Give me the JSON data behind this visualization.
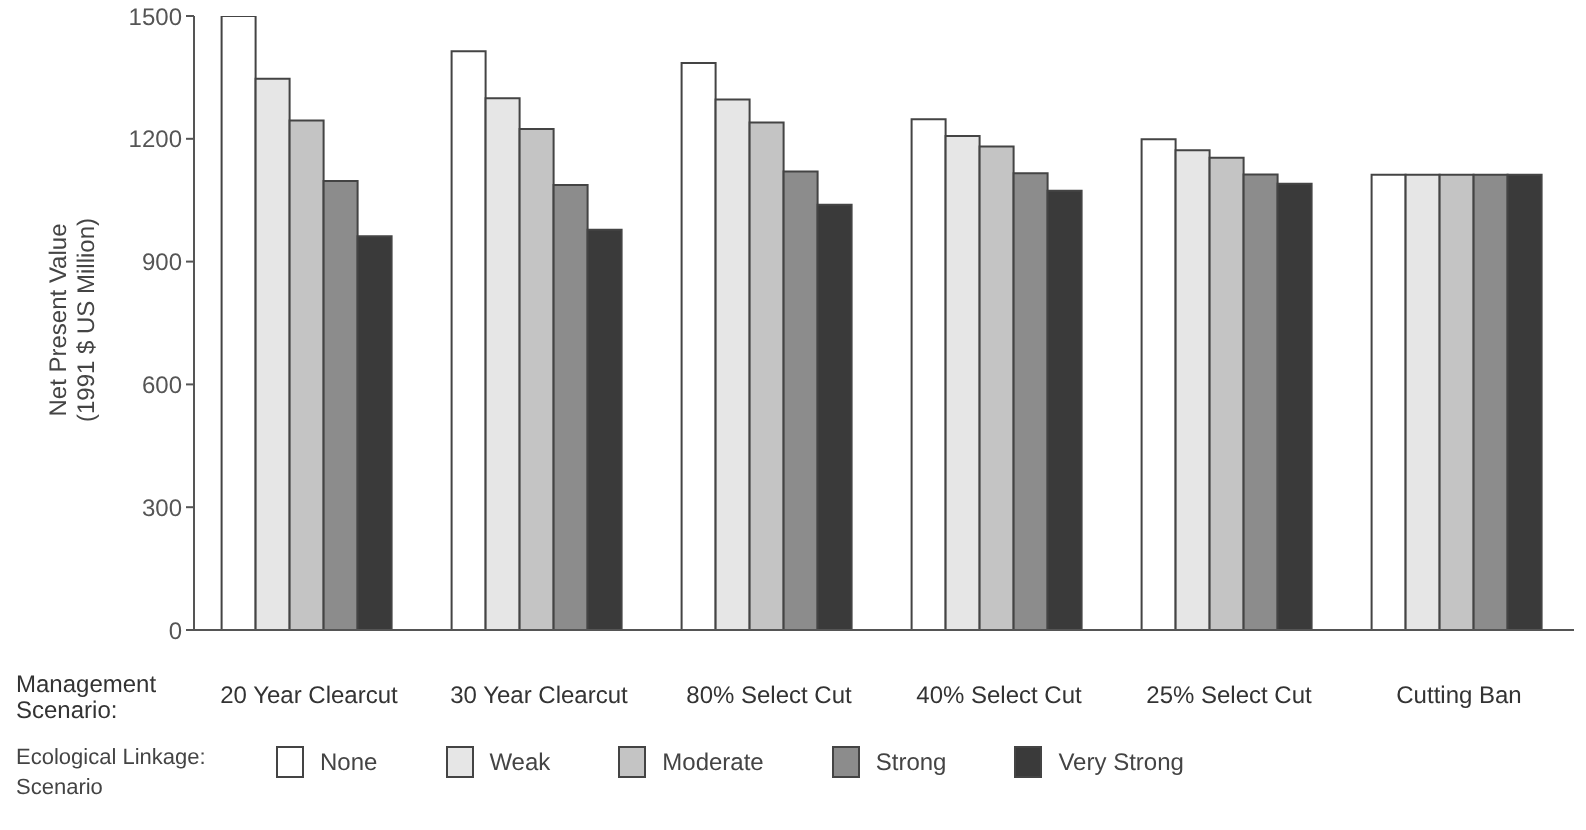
{
  "chart_data": {
    "type": "bar",
    "xlabel": "Management Scenario:",
    "ylabel": "Net Present Value\n(1991 $ US Million)",
    "legend_title": "Ecological Linkage: Scenario",
    "categories": [
      "20 Year Clearcut",
      "30 Year Clearcut",
      "80% Select Cut",
      "40% Select Cut",
      "25% Select Cut",
      "Cutting Ban"
    ],
    "series": [
      {
        "name": "None",
        "color": "#ffffff",
        "values": [
          1500,
          1414,
          1385,
          1248,
          1199,
          1112
        ]
      },
      {
        "name": "Weak",
        "color": "#e6e6e6",
        "values": [
          1347,
          1299,
          1296,
          1207,
          1172,
          1112
        ]
      },
      {
        "name": "Moderate",
        "color": "#c4c4c4",
        "values": [
          1245,
          1224,
          1240,
          1181,
          1154,
          1112
        ]
      },
      {
        "name": "Strong",
        "color": "#8c8c8c",
        "values": [
          1097,
          1087,
          1120,
          1116,
          1113,
          1112
        ]
      },
      {
        "name": "Very Strong",
        "color": "#3a3a3a",
        "values": [
          962,
          978,
          1039,
          1073,
          1090,
          1112
        ]
      }
    ],
    "ylim": [
      0,
      1500
    ],
    "yticks": [
      0,
      300,
      600,
      900,
      1200,
      1500
    ],
    "legend": "bottom"
  }
}
